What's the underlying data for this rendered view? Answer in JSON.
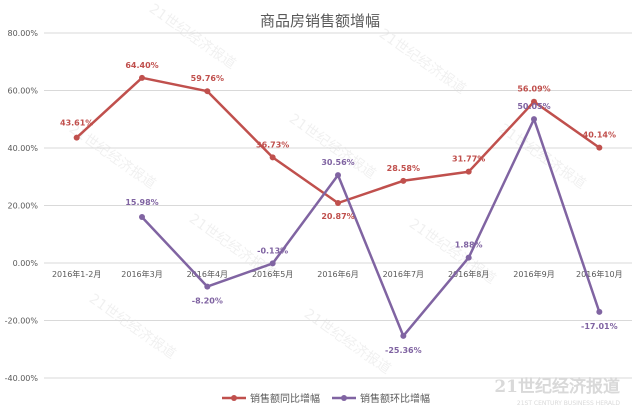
{
  "chart_data": {
    "type": "line",
    "title": "商品房销售额增幅",
    "categories": [
      "2016年1-2月",
      "2016年3月",
      "2016年4月",
      "2016年5月",
      "2016年6月",
      "2016年7月",
      "2016年8月",
      "2016年9月",
      "2016年10月"
    ],
    "series": [
      {
        "name": "销售额同比增幅",
        "color": "#c0504d",
        "values": [
          43.61,
          64.4,
          59.76,
          36.73,
          20.87,
          28.58,
          31.77,
          56.09,
          40.14
        ],
        "labels": [
          "43.61%",
          "64.40%",
          "59.76%",
          "36.73%",
          "20.87%",
          "28.58%",
          "31.77%",
          "56.09%",
          "40.14%"
        ]
      },
      {
        "name": "销售额环比增幅",
        "color": "#8064a2",
        "values": [
          null,
          15.98,
          -8.2,
          -0.13,
          30.56,
          -25.36,
          1.88,
          50.05,
          -17.01
        ],
        "labels": [
          "",
          "15.98%",
          "-8.20%",
          "-0.13%",
          "30.56%",
          "-25.36%",
          "1.88%",
          "50.05%",
          "-17.01%"
        ]
      }
    ],
    "yticks": [
      "80.00%",
      "60.00%",
      "40.00%",
      "20.00%",
      "0.00%",
      "-20.00%",
      "-40.00%"
    ],
    "ylim": [
      -40,
      80
    ],
    "grid": true,
    "legend": "bottom"
  },
  "watermark": {
    "text": "21世纪经济报道",
    "brand": "21世纪经济报道",
    "brand_en": "21ST CENTURY BUSINESS HERALD"
  }
}
